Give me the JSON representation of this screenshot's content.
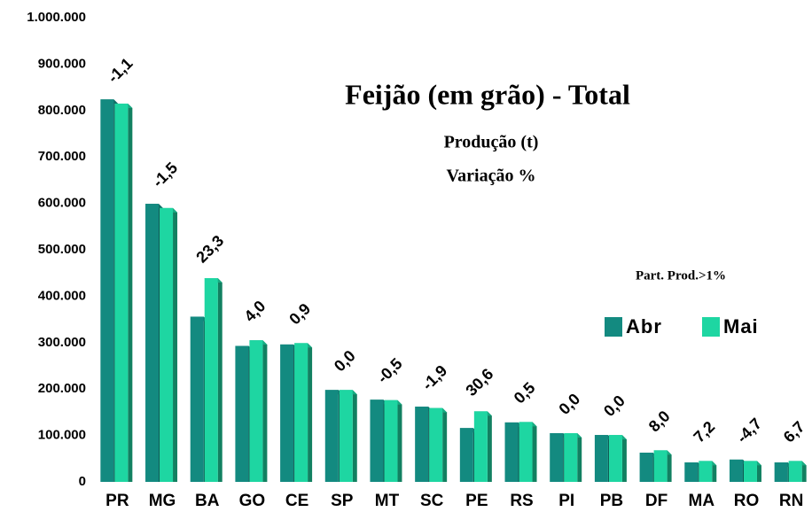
{
  "chart_data": {
    "type": "bar",
    "title": "Feijão (em grão) - Total",
    "subtitle": "Produção (t)",
    "subtitle2": "Variação %",
    "note": "Part. Prod.>1%",
    "categories": [
      "PR",
      "MG",
      "BA",
      "GO",
      "CE",
      "SP",
      "MT",
      "SC",
      "PE",
      "RS",
      "PI",
      "PB",
      "DF",
      "MA",
      "RO",
      "RN"
    ],
    "series": [
      {
        "name": "Abr",
        "color": "#138a80",
        "values": [
          824000,
          599000,
          356000,
          293000,
          296000,
          198000,
          177000,
          162000,
          116000,
          128000,
          105000,
          101000,
          63000,
          42000,
          48000,
          42000
        ]
      },
      {
        "name": "Mai",
        "color": "#1ed6a2",
        "values": [
          815000,
          590000,
          439000,
          305000,
          299000,
          198000,
          176000,
          159000,
          152000,
          129000,
          105000,
          101000,
          68000,
          45000,
          45000,
          45000
        ]
      }
    ],
    "variation_labels": [
      "-1,1",
      "-1,5",
      "23,3",
      "4,0",
      "0,9",
      "0,0",
      "-0,5",
      "-1,9",
      "30,6",
      "0,5",
      "0,0",
      "0,0",
      "8,0",
      "7,2",
      "-4,7",
      "6,7"
    ],
    "ylim": [
      0,
      1000000
    ],
    "yticks": [
      0,
      {
        "value": 100000,
        "label": "100.000"
      },
      {
        "value": 200000,
        "label": "200.000"
      },
      {
        "value": 300000,
        "label": "300.000"
      },
      {
        "value": 400000,
        "label": "400.000"
      },
      {
        "value": 500000,
        "label": "500.000"
      },
      {
        "value": 600000,
        "label": "600.000"
      },
      {
        "value": 700000,
        "label": "700.000"
      },
      {
        "value": 800000,
        "label": "800.000"
      },
      {
        "value": 900000,
        "label": "900.000"
      },
      {
        "value": 1000000,
        "label": "1.000.000"
      }
    ],
    "grid": false
  }
}
